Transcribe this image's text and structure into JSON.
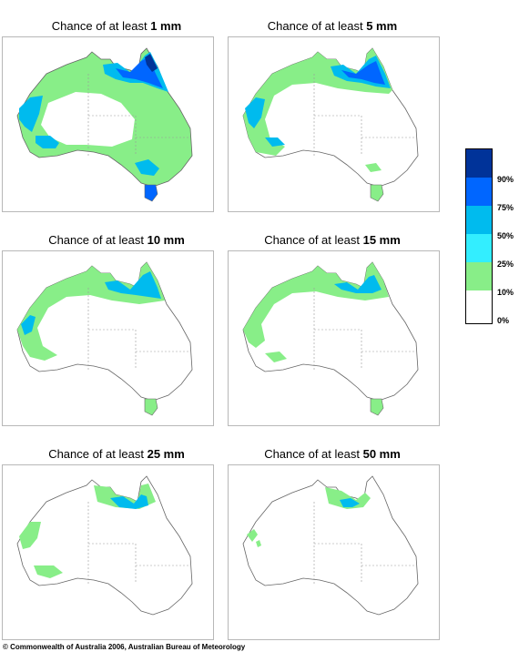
{
  "title_prefix": "Chance of at least",
  "panels": [
    {
      "amount": "1 mm"
    },
    {
      "amount": "5 mm"
    },
    {
      "amount": "10 mm"
    },
    {
      "amount": "15 mm"
    },
    {
      "amount": "25 mm"
    },
    {
      "amount": "50 mm"
    }
  ],
  "legend": {
    "ticks": [
      "90%",
      "75%",
      "50%",
      "25%",
      "10%",
      "0%"
    ],
    "colors": [
      "#003399",
      "#0066ff",
      "#00bbee",
      "#33eeff",
      "#88ee88",
      "#ffffff"
    ]
  },
  "copyright": "© Commonwealth of Australia 2006, Australian Bureau of Meteorology"
}
